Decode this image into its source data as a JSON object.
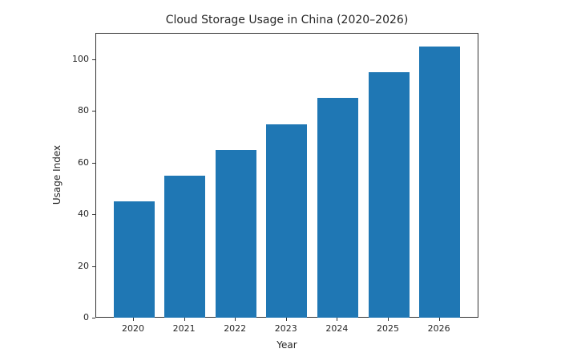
{
  "chart_data": {
    "type": "bar",
    "title": "Cloud Storage Usage in China (2020–2026)",
    "xlabel": "Year",
    "ylabel": "Usage Index",
    "categories": [
      "2020",
      "2021",
      "2022",
      "2023",
      "2024",
      "2025",
      "2026"
    ],
    "values": [
      45,
      55,
      65,
      75,
      85,
      95,
      105
    ],
    "ylim": [
      0,
      110
    ],
    "yticks": [
      0,
      20,
      40,
      60,
      80,
      100
    ],
    "grid": false,
    "legend": null,
    "bar_color": "#1f77b4"
  }
}
